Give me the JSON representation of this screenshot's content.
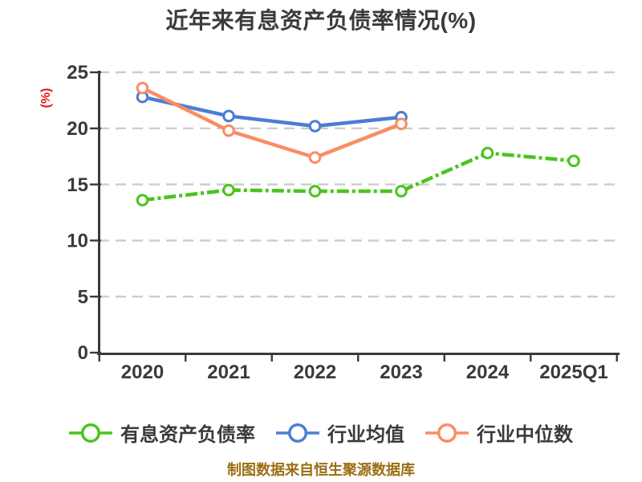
{
  "chart_data": {
    "type": "line",
    "title": "近年来有息资产负债率情况(%)",
    "ylabel": "(%)",
    "xlabel": "",
    "categories": [
      "2020",
      "2021",
      "2022",
      "2023",
      "2024",
      "2025Q1"
    ],
    "yticks": [
      0,
      5,
      10,
      15,
      20,
      25
    ],
    "ylim": [
      0,
      25
    ],
    "grid": "horizontal-dashed",
    "legend_position": "bottom",
    "series": [
      {
        "name": "有息资产负债率",
        "color": "#4bc41c",
        "line_style": "dash-dot",
        "values": [
          13.6,
          14.5,
          14.4,
          14.4,
          17.8,
          17.1
        ]
      },
      {
        "name": "行业均值",
        "color": "#4a7ed3",
        "line_style": "solid",
        "values": [
          22.8,
          21.1,
          20.2,
          21.0,
          null,
          null
        ]
      },
      {
        "name": "行业中位数",
        "color": "#fa8c64",
        "line_style": "solid",
        "values": [
          23.6,
          19.8,
          17.4,
          20.4,
          null,
          null
        ]
      }
    ],
    "source_note": "制图数据来自恒生聚源数据库"
  },
  "colors": {
    "title_text": "#3a3a3a",
    "tick_text": "#3a3a3a",
    "axis": "#3a3a3a",
    "grid": "#cccccc",
    "ylabel_text": "#ee1111",
    "footer_text": "#9b6e14",
    "marker_fill": "#ffffff"
  }
}
